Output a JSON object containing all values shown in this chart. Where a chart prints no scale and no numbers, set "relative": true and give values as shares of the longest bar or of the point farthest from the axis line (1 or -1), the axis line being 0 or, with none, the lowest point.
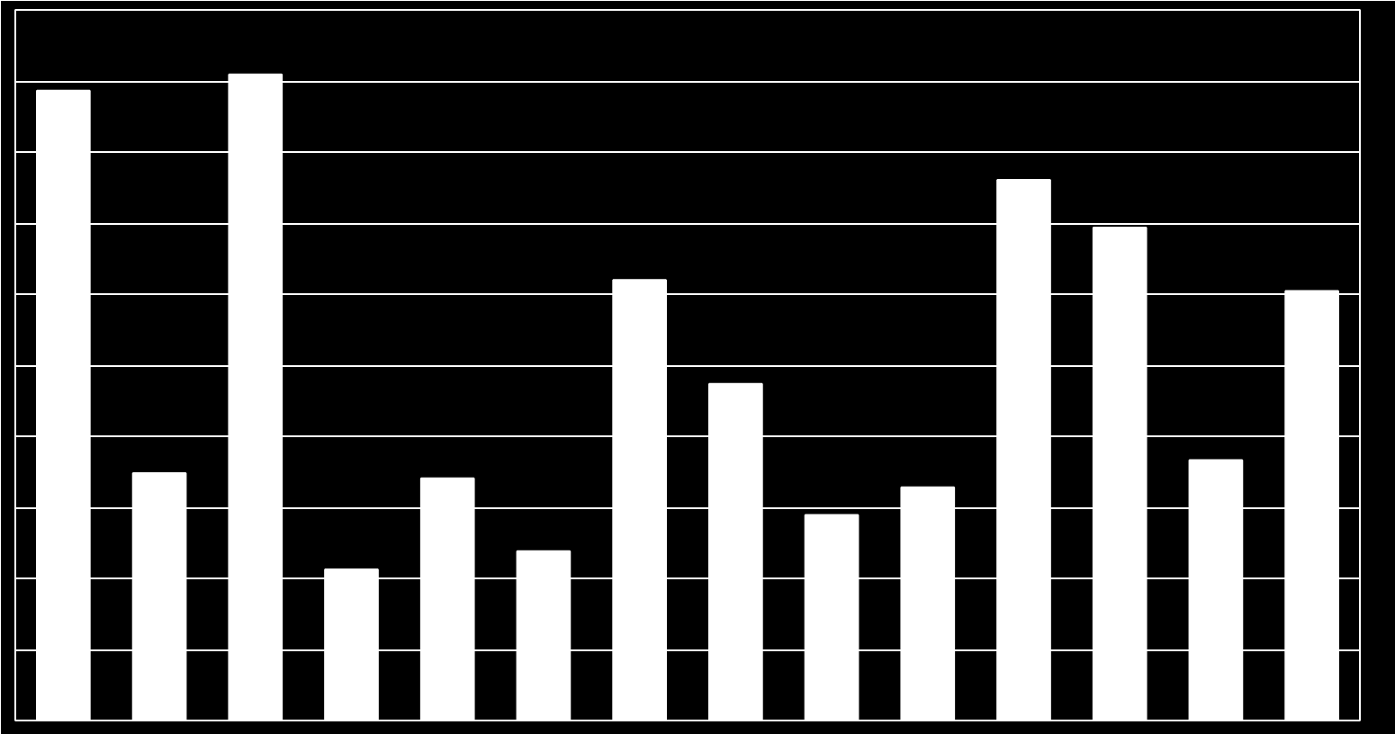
{
  "chart_data": {
    "type": "bar",
    "relative": true,
    "grid": "y",
    "categories": [
      null,
      null,
      null,
      null,
      null,
      null,
      null,
      null,
      null,
      null,
      null,
      null,
      null,
      null
    ],
    "values": [
      0.975,
      0.383,
      1,
      0.234,
      0.375,
      0.262,
      0.682,
      0.521,
      0.318,
      0.361,
      0.837,
      0.763,
      0.403,
      0.665
    ],
    "color": "#ffffff"
  }
}
